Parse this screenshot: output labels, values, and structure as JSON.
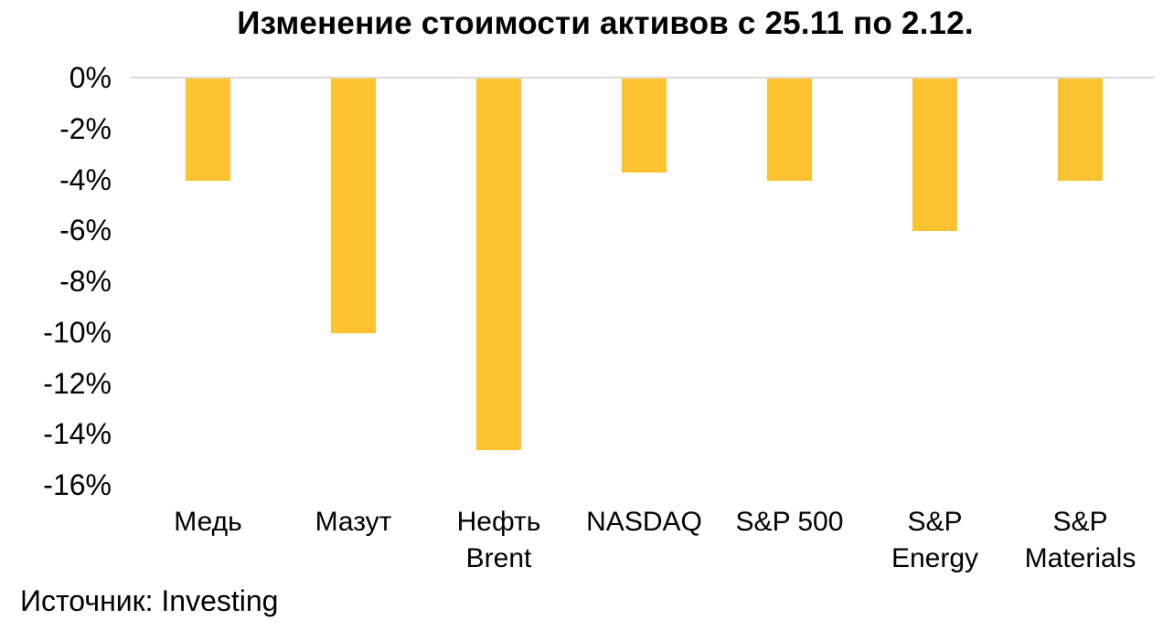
{
  "page": {
    "title": "Изменение стоимости активов с 25.11 по 2.12.",
    "source": "Источник: Investing"
  },
  "chart_data": {
    "type": "bar",
    "title": "Изменение стоимости активов с 25.11 по 2.12.",
    "categories": [
      "Медь",
      "Мазут",
      "Нефть Brent",
      "NASDAQ",
      "S&P 500",
      "S&P Energy",
      "S&P Materials"
    ],
    "category_label_lines": [
      [
        "Медь"
      ],
      [
        "Мазут"
      ],
      [
        "Нефть",
        "Brent"
      ],
      [
        "NASDAQ"
      ],
      [
        "S&P 500"
      ],
      [
        "S&P",
        "Energy"
      ],
      [
        "S&P",
        "Materials"
      ]
    ],
    "values": [
      -4.0,
      -10.0,
      -14.6,
      -3.7,
      -4.0,
      -6.0,
      -4.0
    ],
    "unit": "%",
    "xlabel": "",
    "ylabel": "",
    "ylim": [
      -16,
      0
    ],
    "ytick_step": 2,
    "ytick_labels": [
      "0%",
      "-2%",
      "-4%",
      "-6%",
      "-8%",
      "-10%",
      "-12%",
      "-14%",
      "-16%"
    ],
    "grid": "zero-line-only",
    "legend": false,
    "bar_color": "#FDC230",
    "gridline_color": "#D9D9D9",
    "text_color": "#000000",
    "source": "Источник: Investing"
  }
}
